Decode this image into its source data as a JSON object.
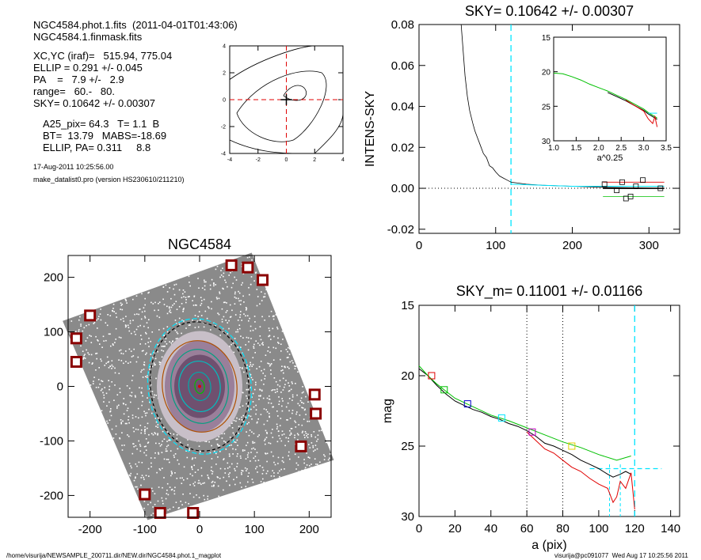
{
  "header": {
    "lines_main": [
      "NGC4584.phot.1.fits  (2011-04-01T01:43:06)",
      "NGC4584.1.finmask.fits"
    ],
    "lines_params": [
      "XC,YC (iraf)=   515.94, 775.04",
      "ELLIP = 0.291 +/- 0.045",
      "PA    =   7.9 +/-   2.9",
      "range=   60.-   80.",
      "SKY= 0.10642 +/- 0.00307"
    ],
    "lines_phot": [
      "A25_pix= 64.3   T= 1.1  B",
      "BT=  13.79   MABS=-18.69",
      "ELLIP, PA= 0.311     8.8"
    ],
    "date": "17-Aug-2011 10:25:56.00",
    "program": "make_datalist0.pro (version HS230610/211210)"
  },
  "footer": {
    "left": "/home/visurija/NEWSAMPLE_200711.dir/NEW.dir/NGC4584.phot.1_magplot",
    "right": "visurija@pc091077  Wed Aug 17 10:25:56 2011"
  },
  "colors": {
    "cyan": "#00e5ff",
    "red": "#e00000",
    "green": "#00c000",
    "magenta": "#c000c0",
    "blue": "#0000cc",
    "mask": "#8b0000"
  },
  "chart_data": [
    {
      "id": "center",
      "type": "line",
      "title": "",
      "xlim": [
        -4,
        4
      ],
      "ylim": [
        -4,
        4
      ],
      "xticks": [
        "-4",
        "-2",
        "0",
        "2",
        "4"
      ],
      "yticks": [
        "-4",
        "-2",
        "0",
        "2",
        "4"
      ],
      "crosshair": [
        0,
        0
      ]
    },
    {
      "id": "sky",
      "type": "line",
      "title": "SKY= 0.10642 +/- 0.00307",
      "xlabel": "",
      "ylabel": "INTENS-SKY",
      "xlim": [
        0,
        340
      ],
      "ylim": [
        -0.022,
        0.08
      ],
      "xticks": [
        "0",
        "100",
        "200",
        "300"
      ],
      "yticks": [
        "-0.02",
        "0.00",
        "0.02",
        "0.04",
        "0.06",
        "0.08"
      ],
      "vline": 120,
      "profile": [
        [
          55,
          0.08
        ],
        [
          60,
          0.055
        ],
        [
          63,
          0.045
        ],
        [
          66,
          0.038
        ],
        [
          70,
          0.032
        ],
        [
          73,
          0.028
        ],
        [
          76,
          0.025
        ],
        [
          80,
          0.021
        ],
        [
          84,
          0.017
        ],
        [
          88,
          0.015
        ],
        [
          92,
          0.011
        ],
        [
          96,
          0.01
        ],
        [
          100,
          0.008
        ],
        [
          105,
          0.006
        ],
        [
          110,
          0.005
        ],
        [
          115,
          0.004
        ],
        [
          120,
          0.003
        ],
        [
          140,
          0.002
        ],
        [
          160,
          0.0015
        ],
        [
          200,
          0.001
        ],
        [
          240,
          0.0005
        ],
        [
          320,
          0.0
        ]
      ],
      "squares": [
        [
          242,
          0.002
        ],
        [
          258,
          -0.001
        ],
        [
          265,
          0.003
        ],
        [
          270,
          -0.005
        ],
        [
          276,
          -0.004
        ],
        [
          283,
          0.001
        ],
        [
          292,
          0.004
        ],
        [
          315,
          0.0
        ]
      ],
      "inset": {
        "xlabel": "a^0.25",
        "xlim": [
          1.0,
          3.5
        ],
        "ylim": [
          15,
          30
        ],
        "xticks": [
          "1.0",
          "1.5",
          "2.0",
          "2.5",
          "3.0",
          "3.5"
        ],
        "yticks": [
          "15",
          "20",
          "25",
          "30"
        ],
        "curve": [
          [
            1.0,
            20.2
          ],
          [
            1.2,
            20.3
          ],
          [
            1.4,
            20.7
          ],
          [
            1.6,
            21.2
          ],
          [
            1.8,
            21.8
          ],
          [
            2.0,
            22.3
          ],
          [
            2.2,
            22.8
          ],
          [
            2.4,
            23.4
          ],
          [
            2.6,
            24.0
          ],
          [
            2.8,
            24.7
          ],
          [
            3.0,
            25.4
          ],
          [
            3.1,
            25.9
          ],
          [
            3.2,
            26.3
          ],
          [
            3.3,
            26.7
          ]
        ]
      }
    },
    {
      "id": "image",
      "type": "scatter",
      "title": "NGC4584",
      "xlim": [
        -240,
        240
      ],
      "ylim": [
        -240,
        240
      ],
      "xticks": [
        "-200",
        "-100",
        "0",
        "100",
        "200"
      ],
      "yticks": [
        "-200",
        "-100",
        "0",
        "100",
        "200"
      ],
      "masks": [
        [
          -200,
          130
        ],
        [
          -225,
          88
        ],
        [
          -225,
          45
        ],
        [
          58,
          222
        ],
        [
          88,
          218
        ],
        [
          115,
          195
        ],
        [
          210,
          -15
        ],
        [
          212,
          -50
        ],
        [
          185,
          -110
        ],
        [
          -100,
          -198
        ],
        [
          -72,
          -232
        ],
        [
          -12,
          -232
        ]
      ]
    },
    {
      "id": "magprofile",
      "type": "line",
      "title": "SKY_m=  0.11001 +/- 0.01166",
      "xlabel": "a (pix)",
      "ylabel": "mag",
      "xlim": [
        0,
        145
      ],
      "ylim": [
        30,
        15
      ],
      "xticks": [
        "0",
        "20",
        "40",
        "60",
        "80",
        "100",
        "120",
        "140"
      ],
      "yticks": [
        "15",
        "20",
        "25",
        "30"
      ],
      "dotted_x": [
        60,
        80
      ],
      "dashed_x": 120,
      "series": [
        {
          "color": "black",
          "values": [
            [
              0,
              19.5
            ],
            [
              5,
              20.0
            ],
            [
              10,
              20.7
            ],
            [
              15,
              21.3
            ],
            [
              20,
              21.8
            ],
            [
              25,
              22.1
            ],
            [
              30,
              22.4
            ],
            [
              35,
              22.6
            ],
            [
              40,
              22.9
            ],
            [
              45,
              23.1
            ],
            [
              50,
              23.4
            ],
            [
              55,
              23.6
            ],
            [
              60,
              23.9
            ],
            [
              65,
              24.3
            ],
            [
              70,
              24.8
            ],
            [
              75,
              25.0
            ],
            [
              80,
              25.3
            ],
            [
              85,
              25.6
            ],
            [
              90,
              26.0
            ],
            [
              95,
              26.3
            ],
            [
              100,
              26.6
            ],
            [
              105,
              27.0
            ],
            [
              108,
              27.2
            ],
            [
              112,
              27.0
            ],
            [
              115,
              26.8
            ],
            [
              118,
              27.0
            ]
          ]
        },
        {
          "color": "red",
          "values": [
            [
              60,
              24.0
            ],
            [
              65,
              24.6
            ],
            [
              70,
              25.2
            ],
            [
              75,
              25.5
            ],
            [
              80,
              26.0
            ],
            [
              85,
              26.5
            ],
            [
              90,
              26.8
            ],
            [
              95,
              27.3
            ],
            [
              100,
              27.7
            ],
            [
              105,
              28.0
            ],
            [
              108,
              29.0
            ],
            [
              110,
              28.6
            ],
            [
              112,
              27.5
            ],
            [
              115,
              28.0
            ],
            [
              118,
              26.9
            ],
            [
              120,
              29.5
            ]
          ]
        },
        {
          "color": "green",
          "values": [
            [
              0,
              19.3
            ],
            [
              5,
              20.0
            ],
            [
              10,
              20.6
            ],
            [
              15,
              21.1
            ],
            [
              20,
              21.6
            ],
            [
              30,
              22.2
            ],
            [
              40,
              22.8
            ],
            [
              50,
              23.2
            ],
            [
              60,
              23.7
            ],
            [
              70,
              24.2
            ],
            [
              80,
              24.7
            ],
            [
              90,
              25.1
            ],
            [
              100,
              25.6
            ],
            [
              110,
              26.0
            ],
            [
              118,
              25.7
            ]
          ]
        }
      ],
      "squares": [
        {
          "x": 7,
          "y": 20.0,
          "color": "red"
        },
        {
          "x": 14,
          "y": 21.0,
          "color": "green"
        },
        {
          "x": 27,
          "y": 22.0,
          "color": "blue"
        },
        {
          "x": 46,
          "y": 23.0,
          "color": "cyan"
        },
        {
          "x": 63,
          "y": 24.0,
          "color": "magenta"
        },
        {
          "x": 85,
          "y": 25.0,
          "color": "yellow"
        }
      ]
    }
  ]
}
